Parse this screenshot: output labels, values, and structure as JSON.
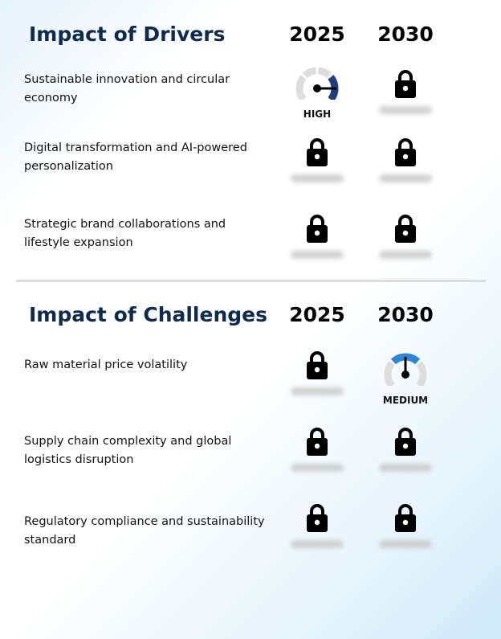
{
  "drivers": {
    "title": "Impact of Drivers",
    "years": [
      "2025",
      "2030"
    ],
    "rows": [
      {
        "label": "Sustainable innovation and circular economy",
        "cells": [
          {
            "type": "gauge",
            "level": "HIGH",
            "color": "#1f3f7a"
          },
          {
            "type": "locked"
          }
        ]
      },
      {
        "label": "Digital transformation and AI-powered personalization",
        "cells": [
          {
            "type": "locked"
          },
          {
            "type": "locked"
          }
        ]
      },
      {
        "label": "Strategic brand collaborations and lifestyle expansion",
        "cells": [
          {
            "type": "locked"
          },
          {
            "type": "locked"
          }
        ]
      }
    ]
  },
  "challenges": {
    "title": "Impact of Challenges",
    "years": [
      "2025",
      "2030"
    ],
    "rows": [
      {
        "label": "Raw material price volatility",
        "cells": [
          {
            "type": "locked"
          },
          {
            "type": "gauge",
            "level": "MEDIUM",
            "color": "#2f86d6"
          }
        ]
      },
      {
        "label": "Supply chain complexity and global logistics disruption",
        "cells": [
          {
            "type": "locked"
          },
          {
            "type": "locked"
          }
        ]
      },
      {
        "label": "Regulatory compliance and sustainability standard",
        "cells": [
          {
            "type": "locked"
          },
          {
            "type": "locked"
          }
        ]
      }
    ]
  },
  "icons": {
    "locked": "lock-icon",
    "gauge": "gauge-icon"
  },
  "colors": {
    "title": "#0e2a4d",
    "gauge_track": "#dddddd"
  }
}
